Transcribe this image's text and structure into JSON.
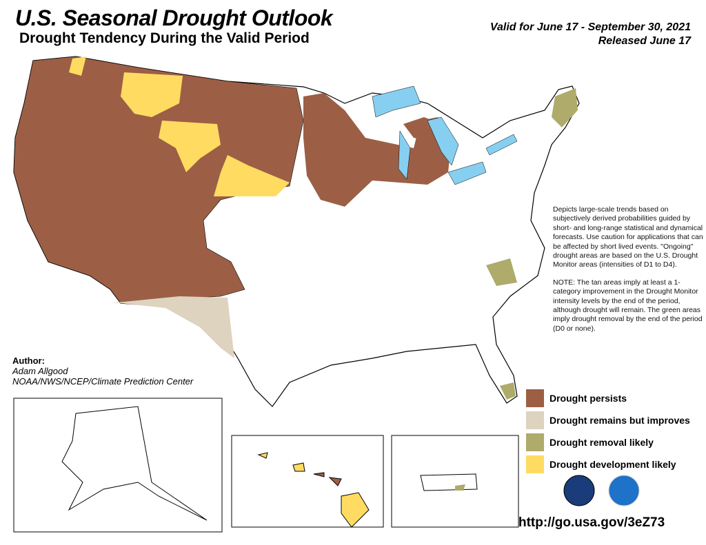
{
  "header": {
    "title": "U.S. Seasonal Drought Outlook",
    "subtitle": "Drought Tendency During the Valid Period",
    "valid": "Valid for June 17 - September 30, 2021",
    "released": "Released June 17"
  },
  "author": {
    "label": "Author:",
    "name": "Adam Allgood",
    "org": "NOAA/NWS/NCEP/Climate Prediction Center"
  },
  "notes": [
    "Depicts large-scale trends based on subjectively derived probabilities guided by short- and long-range statistical and dynamical forecasts. Use caution for applications that can be affected by short lived events. \"Ongoing\" drought areas are based on the U.S. Drought Monitor areas (intensities of D1 to D4).",
    "NOTE: The tan areas imply at least a 1-category improvement in the Drought Monitor intensity levels by the end of the period, although drought will remain. The green areas imply drought removal by the end of the period (D0 or none)."
  ],
  "legend": [
    {
      "label": "Drought persists",
      "color": "#9c5f45"
    },
    {
      "label": "Drought remains but improves",
      "color": "#ddd3bf"
    },
    {
      "label": "Drought removal likely",
      "color": "#aeab6b"
    },
    {
      "label": "Drought development likely",
      "color": "#ffdb62"
    }
  ],
  "colors": {
    "water": "#87cff0",
    "rivers": "#3a8ee8"
  },
  "url": "http://go.usa.gov/3eZ73"
}
